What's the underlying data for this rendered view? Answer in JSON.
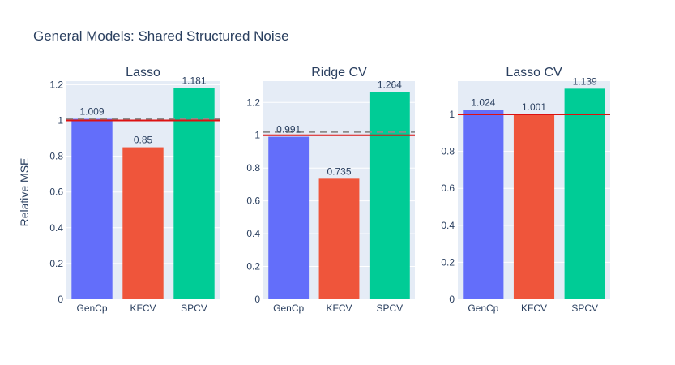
{
  "chart_data": {
    "type": "bar",
    "title": "General Models: Shared Structured Noise",
    "ylabel": "Relative MSE",
    "colors": {
      "GenCp": "#636efa",
      "KFCV": "#ef553b",
      "SPCV": "#00cc96",
      "reference_line": "#dd1111",
      "dashed_line": "#8c8c8c",
      "plot_bg": "#e5ecf6"
    },
    "panels": [
      {
        "title": "Lasso",
        "categories": [
          "GenCp",
          "KFCV",
          "SPCV"
        ],
        "values": [
          1.009,
          0.85,
          1.181
        ],
        "labels": [
          "1.009",
          "0.85",
          "1.181"
        ],
        "ylim": [
          0,
          1.22
        ],
        "yticks": [
          0,
          0.2,
          0.4,
          0.6,
          0.8,
          1,
          1.2
        ],
        "yticklabels": [
          "0",
          "0.2",
          "0.4",
          "0.6",
          "0.8",
          "1",
          "1.2"
        ],
        "reference_line": 1.0,
        "dashed_line": 1.009
      },
      {
        "title": "Ridge CV",
        "categories": [
          "GenCp",
          "KFCV",
          "SPCV"
        ],
        "values": [
          0.991,
          0.735,
          1.264
        ],
        "labels": [
          "0.991",
          "0.735",
          "1.264"
        ],
        "ylim": [
          0,
          1.33
        ],
        "yticks": [
          0,
          0.2,
          0.4,
          0.6,
          0.8,
          1,
          1.2
        ],
        "yticklabels": [
          "0",
          "0.2",
          "0.4",
          "0.6",
          "0.8",
          "1",
          "1.2"
        ],
        "reference_line": 1.0,
        "dashed_line": 1.02
      },
      {
        "title": "Lasso CV",
        "categories": [
          "GenCp",
          "KFCV",
          "SPCV"
        ],
        "values": [
          1.024,
          1.001,
          1.139
        ],
        "labels": [
          "1.024",
          "1.001",
          "1.139"
        ],
        "ylim": [
          0,
          1.18
        ],
        "yticks": [
          0,
          0.2,
          0.4,
          0.6,
          0.8,
          1
        ],
        "yticklabels": [
          "0",
          "0.2",
          "0.4",
          "0.6",
          "0.8",
          "1"
        ],
        "reference_line": 1.0,
        "dashed_line": 1.0
      }
    ]
  }
}
